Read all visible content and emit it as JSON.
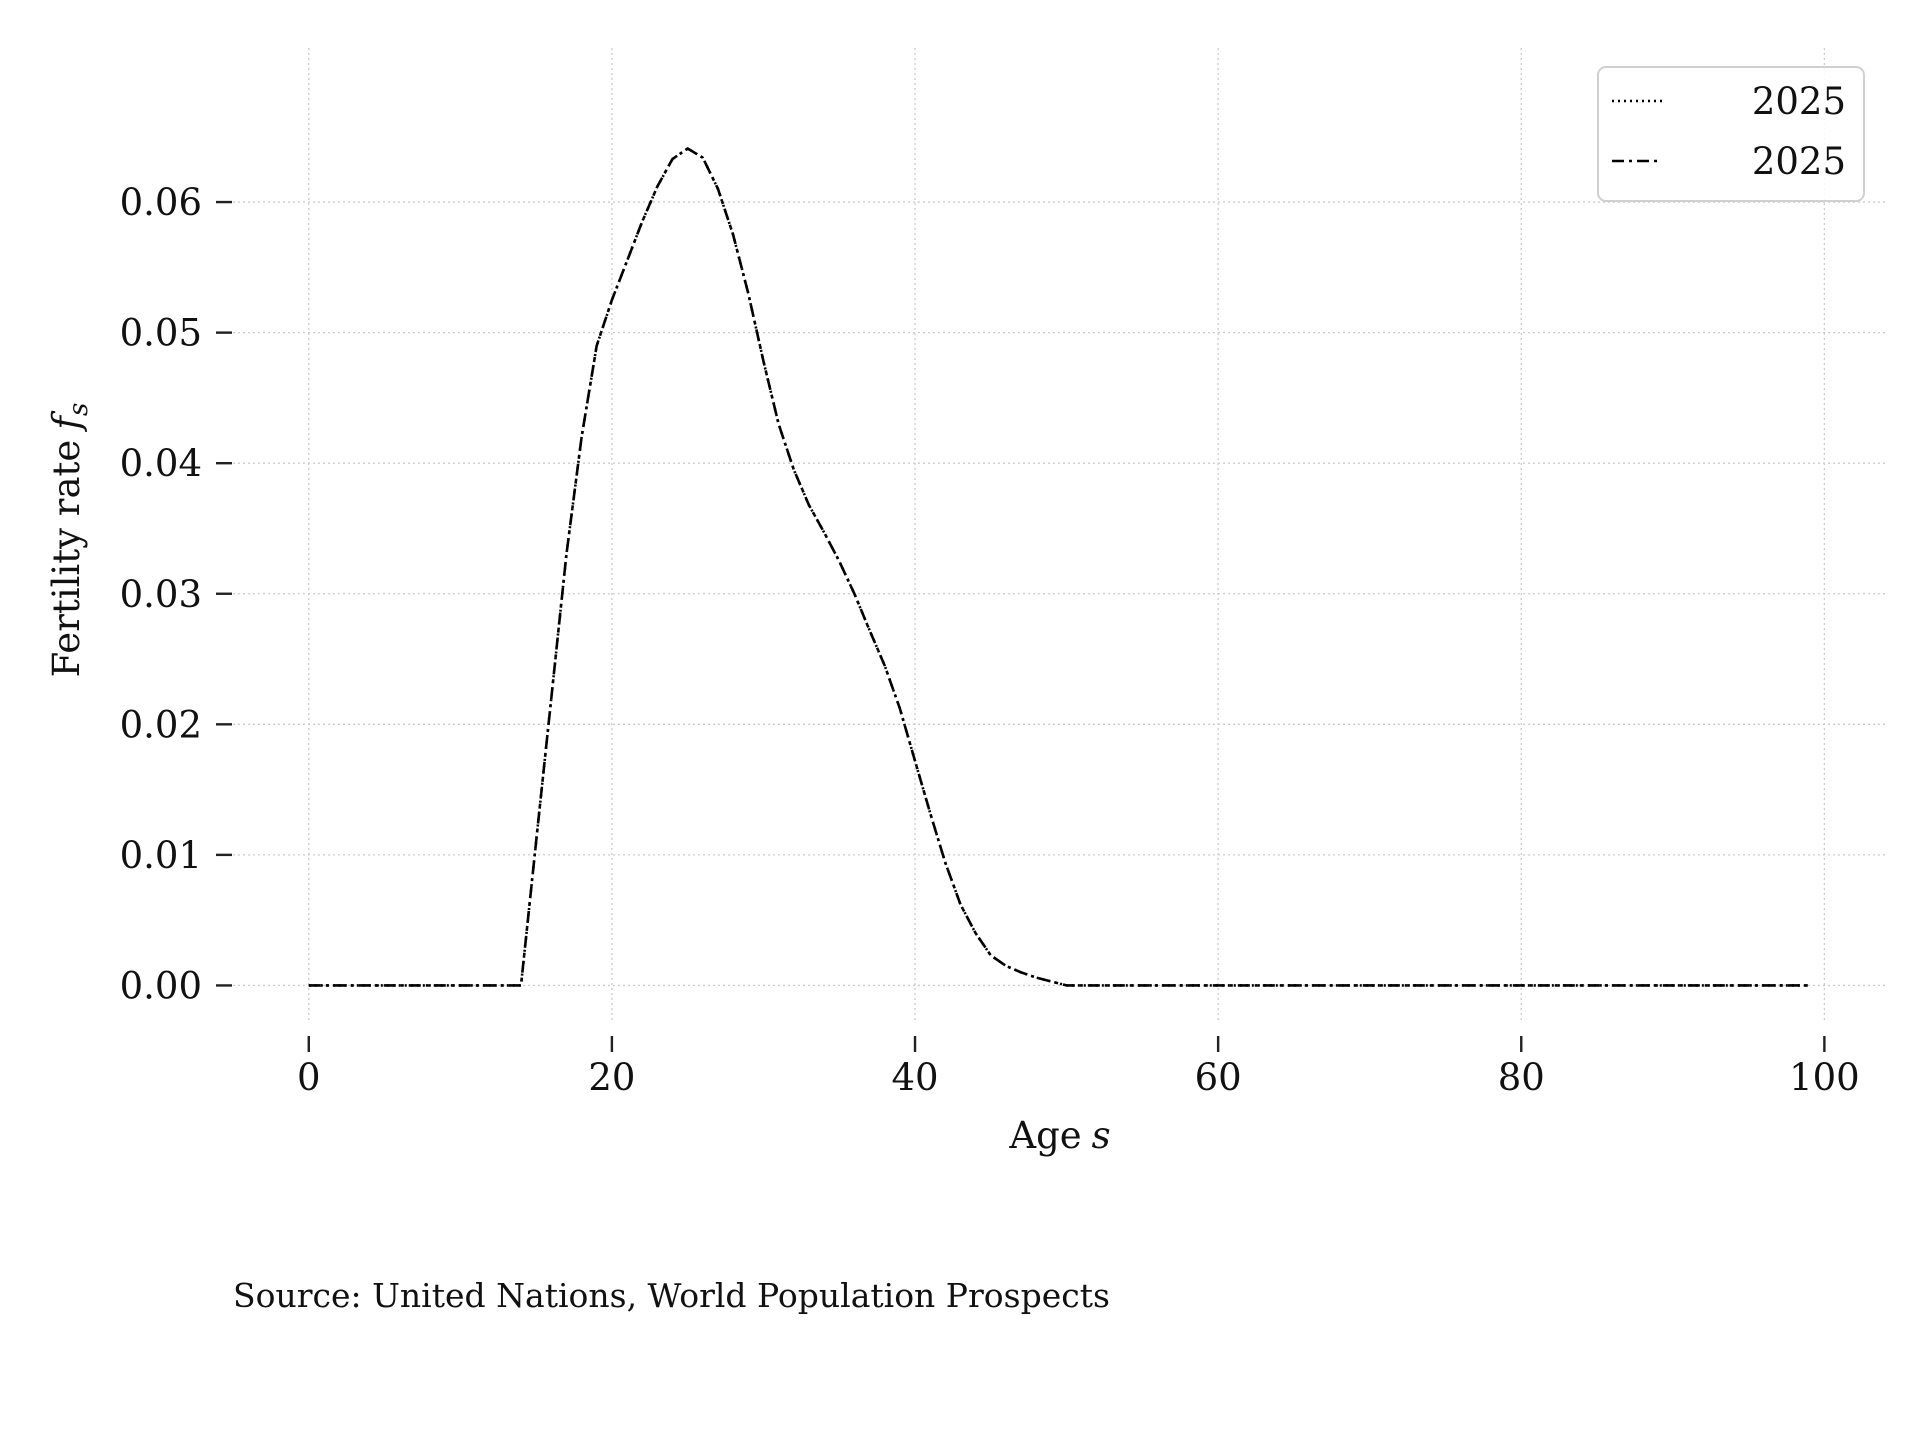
{
  "chart_data": {
    "type": "line",
    "title": "",
    "xlabel": "Age",
    "xlabel_var": "s",
    "ylabel": "Fertility rate",
    "ylabel_var": "f",
    "ylabel_sub": "s",
    "xlim": [
      -5,
      104
    ],
    "ylim": [
      -0.0028,
      0.0718
    ],
    "xticks": [
      0,
      20,
      40,
      60,
      80,
      100
    ],
    "xtick_labels": [
      "0",
      "20",
      "40",
      "60",
      "80",
      "100"
    ],
    "yticks": [
      0.0,
      0.01,
      0.02,
      0.03,
      0.04,
      0.05,
      0.06
    ],
    "ytick_labels": [
      "0.00",
      "0.01",
      "0.02",
      "0.03",
      "0.04",
      "0.05",
      "0.06"
    ],
    "grid": true,
    "legend_position": "top-right",
    "series": [
      {
        "name": "2025",
        "style": "dotted",
        "color": "#000000",
        "x": [
          0,
          5,
          10,
          14,
          15,
          16,
          17,
          18,
          19,
          20,
          21,
          22,
          23,
          24,
          25,
          26,
          27,
          28,
          29,
          30,
          31,
          32,
          33,
          34,
          35,
          36,
          37,
          38,
          39,
          40,
          41,
          42,
          43,
          44,
          45,
          46,
          47,
          48,
          49,
          50,
          60,
          70,
          80,
          90,
          99
        ],
        "y": [
          0.0,
          0.0,
          0.0,
          0.0,
          0.011,
          0.022,
          0.033,
          0.042,
          0.049,
          0.0525,
          0.0555,
          0.0585,
          0.0612,
          0.0633,
          0.0641,
          0.0634,
          0.061,
          0.0575,
          0.053,
          0.0478,
          0.043,
          0.0395,
          0.0368,
          0.0347,
          0.0325,
          0.03,
          0.0272,
          0.0245,
          0.0212,
          0.0172,
          0.0132,
          0.0094,
          0.0062,
          0.004,
          0.0023,
          0.0015,
          0.001,
          0.0006,
          0.0003,
          0.0,
          0.0,
          0.0,
          0.0,
          0.0,
          0.0
        ]
      },
      {
        "name": "2025",
        "style": "dashdot",
        "color": "#000000",
        "x": [
          0,
          5,
          10,
          14,
          15,
          16,
          17,
          18,
          19,
          20,
          21,
          22,
          23,
          24,
          25,
          26,
          27,
          28,
          29,
          30,
          31,
          32,
          33,
          34,
          35,
          36,
          37,
          38,
          39,
          40,
          41,
          42,
          43,
          44,
          45,
          46,
          47,
          48,
          49,
          50,
          60,
          70,
          80,
          90,
          99
        ],
        "y": [
          0.0,
          0.0,
          0.0,
          0.0,
          0.011,
          0.022,
          0.033,
          0.042,
          0.049,
          0.0525,
          0.0555,
          0.0585,
          0.0612,
          0.0633,
          0.0641,
          0.0634,
          0.061,
          0.0575,
          0.053,
          0.0478,
          0.043,
          0.0395,
          0.0368,
          0.0347,
          0.0325,
          0.03,
          0.0272,
          0.0245,
          0.0212,
          0.0172,
          0.0132,
          0.0094,
          0.0062,
          0.004,
          0.0023,
          0.0015,
          0.001,
          0.0006,
          0.0003,
          0.0,
          0.0,
          0.0,
          0.0,
          0.0,
          0.0
        ]
      }
    ]
  },
  "source_note": "Source: United Nations, World Population Prospects"
}
